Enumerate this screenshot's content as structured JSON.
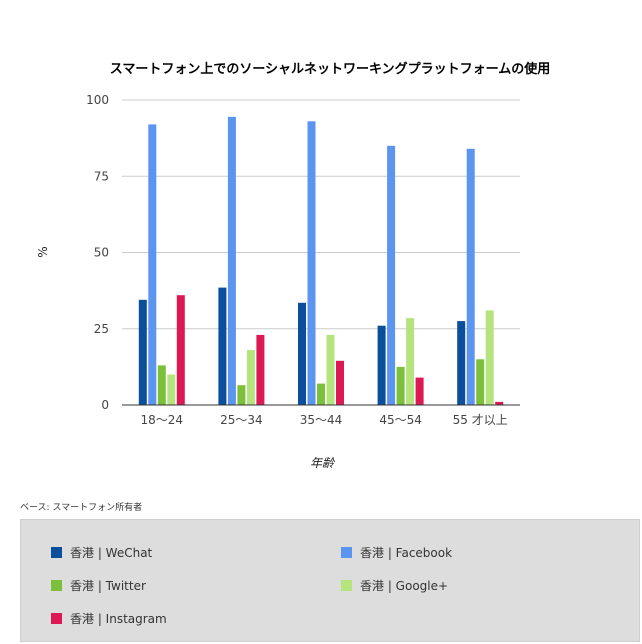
{
  "chart_data": {
    "type": "bar",
    "title": "スマートフォン上でのソーシャルネットワーキングプラットフォームの使用",
    "xlabel": "年齢",
    "ylabel": "%",
    "ylim": [
      0,
      100
    ],
    "yticks": [
      0,
      25,
      50,
      75,
      100
    ],
    "grid": true,
    "legend": "bottom",
    "categories": [
      "18〜24",
      "25〜34",
      "35〜44",
      "45〜54",
      "55 才以上"
    ],
    "series": [
      {
        "name": "香港 | WeChat",
        "color": "#0b4f9c",
        "values": [
          34.5,
          38.5,
          33.5,
          26,
          27.5
        ]
      },
      {
        "name": "香港 | Facebook",
        "color": "#5b95ef",
        "values": [
          92,
          94.5,
          93,
          85,
          84
        ]
      },
      {
        "name": "香港 | Twitter",
        "color": "#7cbf3a",
        "values": [
          13,
          6.5,
          7,
          12.5,
          15
        ]
      },
      {
        "name": "香港 | Google+",
        "color": "#b5e37e",
        "values": [
          10,
          18,
          23,
          28.5,
          31
        ]
      },
      {
        "name": "香港 | Instagram",
        "color": "#dc1955",
        "values": [
          36,
          23,
          14.5,
          9,
          1
        ]
      }
    ]
  },
  "base_note": "ベース: スマートフォン所有者"
}
